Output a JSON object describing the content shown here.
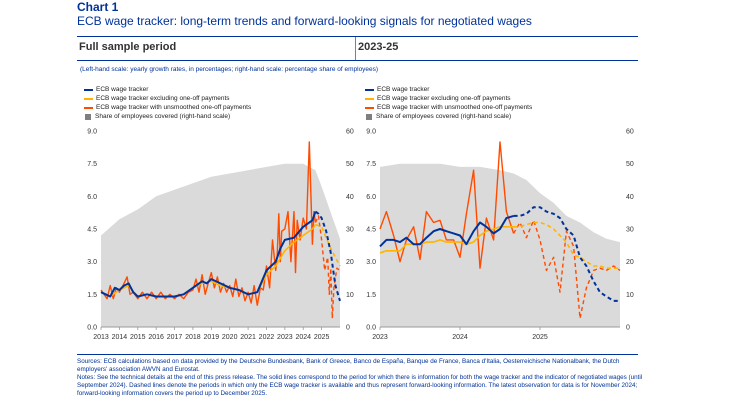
{
  "header": {
    "chart_label": "Chart 1",
    "title": "ECB wage tracker: long-term trends and forward-looking signals for negotiated wages"
  },
  "panels": {
    "left_title": "Full sample period",
    "right_title": "2023-25"
  },
  "scale_note": "(Left-hand scale: yearly growth rates, in percentages; right-hand scale: percentage share of employees)",
  "legend": [
    {
      "label": "ECB wage tracker",
      "color": "#003299",
      "kind": "line"
    },
    {
      "label": "ECB wage tracker excluding one-off payments",
      "color": "#FFB400",
      "kind": "line"
    },
    {
      "label": "ECB wage tracker with unsmoothed one-off payments",
      "color": "#FF4B00",
      "kind": "line"
    },
    {
      "label": "Share of employees covered (right-hand scale)",
      "color": "#7f7f7f",
      "kind": "box"
    }
  ],
  "footnotes": {
    "sources": "Sources: ECB calculations based on data provided by the Deutsche Bundesbank, Bank of Greece, Banco de España, Banque de France, Banca d'Italia, Oesterreichische Nationalbank, the Dutch employers' association AWVN and Eurostat.",
    "notes": "Notes: See the technical details at the end of this press release. The solid lines correspond to the period for which there is information for both the wage tracker and the indicator of negotiated wages (until September 2024). Dashed lines denote the periods in which only the ECB wage tracker is available and thus represent forward-looking information. The latest observation for data is for November 2024; forward-looking information covers the period up to December 2025."
  },
  "chart_data": [
    {
      "type": "line",
      "panel": "Full sample period",
      "x_start": 2013.0,
      "x_end": 2026.0,
      "ylim_left": [
        0,
        9
      ],
      "ylim_right": [
        0,
        60
      ],
      "y_ticks_left": [
        "0.0",
        "1.5",
        "3.0",
        "4.5",
        "6.0",
        "7.5",
        "9.0"
      ],
      "y_ticks_right": [
        "0",
        "10",
        "20",
        "30",
        "40",
        "50",
        "60"
      ],
      "x_ticks": [
        "2013",
        "2014",
        "2015",
        "2016",
        "2017",
        "2018",
        "2019",
        "2020",
        "2021",
        "2022",
        "2023",
        "2024",
        "2025"
      ],
      "solid_until": 2024.67,
      "share_of_employees": {
        "x": [
          2013.0,
          2014.0,
          2015.0,
          2016.0,
          2017.0,
          2018.0,
          2019.0,
          2020.0,
          2021.0,
          2022.0,
          2023.0,
          2023.5,
          2024.0,
          2024.67,
          2025.0,
          2025.5,
          2026.0
        ],
        "values": [
          28,
          33,
          36,
          40,
          42,
          44,
          46,
          47,
          48,
          49,
          50,
          50,
          50,
          48,
          43,
          35,
          27
        ]
      },
      "series": [
        {
          "name": "ECB wage tracker",
          "x": [
            2013.0,
            2013.25,
            2013.5,
            2013.75,
            2014.0,
            2014.25,
            2014.5,
            2014.75,
            2015.0,
            2015.5,
            2016.0,
            2016.5,
            2017.0,
            2017.5,
            2018.0,
            2018.5,
            2018.75,
            2019.0,
            2019.5,
            2020.0,
            2020.5,
            2021.0,
            2021.5,
            2022.0,
            2022.5,
            2022.75,
            2023.0,
            2023.5,
            2024.0,
            2024.5,
            2024.67,
            2024.83,
            2025.0,
            2025.25,
            2025.5,
            2025.75,
            2026.0
          ],
          "values": [
            1.6,
            1.5,
            1.4,
            1.8,
            1.7,
            1.9,
            2.0,
            1.6,
            1.4,
            1.5,
            1.4,
            1.4,
            1.4,
            1.5,
            1.8,
            2.1,
            2.0,
            2.2,
            2.0,
            1.8,
            1.7,
            1.5,
            1.6,
            2.6,
            3.0,
            3.6,
            4.0,
            4.1,
            4.6,
            4.9,
            5.3,
            5.2,
            5.0,
            4.4,
            3.4,
            1.9,
            1.2
          ]
        },
        {
          "name": "ECB wage tracker excluding one-off payments",
          "x": [
            2013.0,
            2013.5,
            2014.0,
            2014.5,
            2015.0,
            2015.5,
            2016.0,
            2016.5,
            2017.0,
            2017.5,
            2018.0,
            2018.5,
            2019.0,
            2019.5,
            2020.0,
            2020.5,
            2021.0,
            2021.5,
            2022.0,
            2022.5,
            2023.0,
            2023.5,
            2024.0,
            2024.5,
            2024.67,
            2025.0,
            2025.5,
            2026.0
          ],
          "values": [
            1.6,
            1.4,
            1.7,
            1.9,
            1.4,
            1.5,
            1.4,
            1.4,
            1.4,
            1.5,
            1.8,
            2.0,
            2.1,
            1.9,
            1.8,
            1.7,
            1.5,
            1.6,
            2.4,
            2.8,
            3.5,
            3.9,
            4.2,
            4.5,
            4.7,
            4.6,
            3.6,
            2.8
          ]
        },
        {
          "name": "ECB wage tracker with unsmoothed one-off payments",
          "x": [
            2013.0,
            2013.17,
            2013.33,
            2013.5,
            2013.67,
            2013.83,
            2014.0,
            2014.25,
            2014.42,
            2014.58,
            2014.75,
            2015.0,
            2015.25,
            2015.5,
            2015.75,
            2016.0,
            2016.25,
            2016.5,
            2016.75,
            2017.0,
            2017.25,
            2017.5,
            2017.75,
            2018.0,
            2018.17,
            2018.33,
            2018.5,
            2018.67,
            2018.83,
            2019.0,
            2019.17,
            2019.33,
            2019.5,
            2019.67,
            2019.83,
            2020.0,
            2020.17,
            2020.33,
            2020.5,
            2020.67,
            2020.83,
            2021.0,
            2021.17,
            2021.33,
            2021.5,
            2021.67,
            2021.83,
            2022.0,
            2022.17,
            2022.33,
            2022.5,
            2022.58,
            2022.67,
            2022.75,
            2022.83,
            2023.0,
            2023.17,
            2023.33,
            2023.5,
            2023.58,
            2023.67,
            2023.83,
            2024.0,
            2024.17,
            2024.33,
            2024.5,
            2024.58,
            2024.67,
            2024.83,
            2025.0,
            2025.17,
            2025.33,
            2025.42,
            2025.5,
            2025.58,
            2025.67,
            2025.83,
            2026.0
          ],
          "values": [
            1.7,
            1.5,
            1.3,
            1.9,
            1.3,
            1.8,
            1.6,
            2.0,
            2.3,
            1.5,
            1.6,
            1.3,
            1.6,
            1.3,
            1.6,
            1.3,
            1.6,
            1.3,
            1.5,
            1.3,
            1.5,
            1.3,
            1.6,
            1.7,
            2.2,
            1.6,
            2.4,
            1.5,
            2.0,
            2.5,
            1.8,
            2.3,
            1.6,
            2.0,
            1.6,
            1.9,
            1.4,
            2.2,
            1.4,
            1.8,
            1.2,
            1.6,
            1.1,
            1.9,
            1.0,
            1.8,
            1.7,
            2.8,
            1.8,
            4.0,
            2.6,
            3.2,
            5.2,
            3.0,
            4.4,
            4.5,
            5.3,
            3.0,
            5.3,
            2.5,
            4.9,
            4.0,
            5.0,
            4.5,
            8.5,
            3.8,
            5.3,
            4.8,
            5.1,
            4.0,
            2.6,
            3.2,
            1.5,
            2.7,
            0.4,
            1.8,
            2.7,
            2.6
          ]
        }
      ]
    },
    {
      "type": "line",
      "panel": "2023-25",
      "x_start": 2023.0,
      "x_end": 2026.0,
      "ylim_left": [
        0,
        9
      ],
      "ylim_right": [
        0,
        60
      ],
      "y_ticks_left": [
        "0.0",
        "1.5",
        "3.0",
        "4.5",
        "6.0",
        "7.5",
        "9.0"
      ],
      "y_ticks_right": [
        "0",
        "10",
        "20",
        "30",
        "40",
        "50",
        "60"
      ],
      "x_ticks": [
        "2023",
        "2024",
        "2025"
      ],
      "solid_until": 2024.67,
      "share_of_employees": {
        "x": [
          2023.0,
          2023.25,
          2023.5,
          2023.75,
          2024.0,
          2024.25,
          2024.5,
          2024.67,
          2024.83,
          2025.0,
          2025.17,
          2025.33,
          2025.5,
          2025.67,
          2025.83,
          2026.0
        ],
        "values": [
          49,
          50,
          50,
          50,
          49,
          49,
          48,
          47,
          45,
          41,
          38,
          34,
          32,
          29,
          27,
          26
        ]
      },
      "series": [
        {
          "name": "ECB wage tracker",
          "x": [
            2023.0,
            2023.08,
            2023.17,
            2023.25,
            2023.33,
            2023.42,
            2023.5,
            2023.58,
            2023.67,
            2023.75,
            2023.83,
            2023.92,
            2024.0,
            2024.08,
            2024.17,
            2024.25,
            2024.33,
            2024.42,
            2024.5,
            2024.58,
            2024.67,
            2024.75,
            2024.83,
            2024.92,
            2025.0,
            2025.08,
            2025.17,
            2025.25,
            2025.33,
            2025.42,
            2025.5,
            2025.58,
            2025.67,
            2025.75,
            2025.83,
            2025.92,
            2026.0
          ],
          "values": [
            3.7,
            4.0,
            4.0,
            3.9,
            4.1,
            3.8,
            3.8,
            4.1,
            4.4,
            4.5,
            4.4,
            4.3,
            4.2,
            3.8,
            4.4,
            4.8,
            4.6,
            4.3,
            4.5,
            5.0,
            5.1,
            5.1,
            5.2,
            5.5,
            5.5,
            5.3,
            5.2,
            5.0,
            4.5,
            4.2,
            3.2,
            2.8,
            2.1,
            1.6,
            1.4,
            1.2,
            1.2
          ]
        },
        {
          "name": "ECB wage tracker excluding one-off payments",
          "x": [
            2023.0,
            2023.08,
            2023.17,
            2023.25,
            2023.33,
            2023.42,
            2023.5,
            2023.58,
            2023.67,
            2023.75,
            2023.83,
            2023.92,
            2024.0,
            2024.08,
            2024.17,
            2024.25,
            2024.33,
            2024.42,
            2024.5,
            2024.58,
            2024.67,
            2024.75,
            2024.83,
            2024.92,
            2025.0,
            2025.08,
            2025.17,
            2025.25,
            2025.33,
            2025.42,
            2025.5,
            2025.58,
            2025.67,
            2025.75,
            2025.83,
            2025.92,
            2026.0
          ],
          "values": [
            3.4,
            3.5,
            3.5,
            3.5,
            3.8,
            3.8,
            3.8,
            3.9,
            3.9,
            4.0,
            3.9,
            3.9,
            3.9,
            3.8,
            3.9,
            4.2,
            4.4,
            4.5,
            4.6,
            4.6,
            4.6,
            4.6,
            4.7,
            4.8,
            4.8,
            4.7,
            4.5,
            4.2,
            3.9,
            3.3,
            3.2,
            3.0,
            2.8,
            2.8,
            2.7,
            2.7,
            2.7
          ]
        },
        {
          "name": "ECB wage tracker with unsmoothed one-off payments",
          "x": [
            2023.0,
            2023.08,
            2023.17,
            2023.25,
            2023.33,
            2023.42,
            2023.5,
            2023.58,
            2023.67,
            2023.75,
            2023.83,
            2023.92,
            2024.0,
            2024.08,
            2024.17,
            2024.25,
            2024.33,
            2024.42,
            2024.5,
            2024.58,
            2024.67,
            2024.75,
            2024.83,
            2024.92,
            2025.0,
            2025.08,
            2025.17,
            2025.25,
            2025.33,
            2025.42,
            2025.5,
            2025.58,
            2025.67,
            2025.75,
            2025.83,
            2025.92,
            2026.0
          ],
          "values": [
            4.5,
            5.3,
            4.2,
            3.0,
            4.0,
            4.6,
            3.1,
            5.3,
            4.8,
            4.9,
            4.0,
            4.0,
            3.2,
            5.2,
            7.2,
            2.7,
            5.0,
            4.0,
            8.5,
            5.3,
            4.3,
            4.8,
            4.1,
            4.9,
            4.0,
            2.6,
            3.2,
            1.6,
            4.4,
            3.7,
            0.4,
            1.8,
            2.6,
            2.7,
            2.6,
            2.8,
            2.6
          ]
        }
      ]
    }
  ]
}
